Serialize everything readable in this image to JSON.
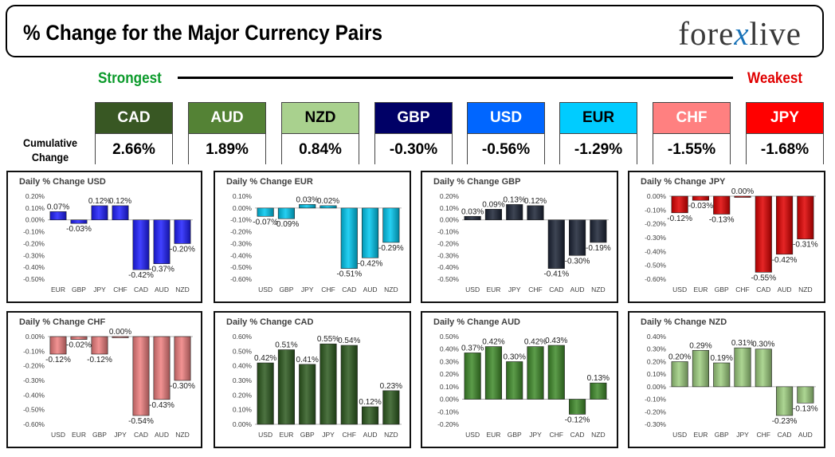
{
  "header": {
    "title": "% Change for the Major Currency Pairs",
    "logo_text_1": "fore",
    "logo_text_x": "x",
    "logo_text_2": "live"
  },
  "strength": {
    "strong_label": "Strongest",
    "weak_label": "Weakest",
    "cumulative_label": "Cumulative Change"
  },
  "currencies": [
    {
      "code": "CAD",
      "value": "2.66%",
      "color": "#385723",
      "text_color": "#ffffff"
    },
    {
      "code": "AUD",
      "value": "1.89%",
      "color": "#548235",
      "text_color": "#ffffff"
    },
    {
      "code": "NZD",
      "value": "0.84%",
      "color": "#a9d18e",
      "text_color": "#000000"
    },
    {
      "code": "GBP",
      "value": "-0.30%",
      "color": "#000066",
      "text_color": "#ffffff"
    },
    {
      "code": "USD",
      "value": "-0.56%",
      "color": "#0066ff",
      "text_color": "#ffffff"
    },
    {
      "code": "EUR",
      "value": "-1.29%",
      "color": "#00ccff",
      "text_color": "#000000"
    },
    {
      "code": "CHF",
      "value": "-1.55%",
      "color": "#ff8080",
      "text_color": "#ffffff"
    },
    {
      "code": "JPY",
      "value": "-1.68%",
      "color": "#ff0000",
      "text_color": "#ffffff"
    }
  ],
  "chart_data": [
    {
      "type": "bar",
      "title": "Daily % Change USD",
      "color": "#1f1fff",
      "categories": [
        "EUR",
        "GBP",
        "JPY",
        "CHF",
        "CAD",
        "AUD",
        "NZD"
      ],
      "values": [
        0.07,
        -0.03,
        0.12,
        0.12,
        -0.42,
        -0.37,
        -0.2
      ],
      "labels": [
        "0.07%",
        "-0.03%",
        "0.12%",
        "0.12%",
        "-0.42%",
        "-0.37%",
        "-0.20%"
      ],
      "ticks": [
        "0.20%",
        "0.10%",
        "0.00%",
        "-0.10%",
        "-0.20%",
        "-0.30%",
        "-0.40%",
        "-0.50%"
      ],
      "ylim": [
        -0.5,
        0.2
      ]
    },
    {
      "type": "bar",
      "title": "Daily % Change EUR",
      "color": "#00c8f0",
      "categories": [
        "USD",
        "GBP",
        "JPY",
        "CHF",
        "CAD",
        "AUD",
        "NZD"
      ],
      "values": [
        -0.07,
        -0.09,
        0.03,
        0.02,
        -0.51,
        -0.42,
        -0.29
      ],
      "labels": [
        "-0.07%",
        "-0.09%",
        "0.03%",
        "0.02%",
        "-0.51%",
        "-0.42%",
        "-0.29%"
      ],
      "ticks": [
        "0.10%",
        "0.00%",
        "-0.10%",
        "-0.20%",
        "-0.30%",
        "-0.40%",
        "-0.50%",
        "-0.60%"
      ],
      "ylim": [
        -0.6,
        0.1
      ]
    },
    {
      "type": "bar",
      "title": "Daily % Change GBP",
      "color": "#1c2436",
      "categories": [
        "USD",
        "EUR",
        "JPY",
        "CHF",
        "CAD",
        "AUD",
        "NZD"
      ],
      "values": [
        0.03,
        0.09,
        0.13,
        0.12,
        -0.41,
        -0.3,
        -0.19
      ],
      "labels": [
        "0.03%",
        "0.09%",
        "0.13%",
        "0.12%",
        "-0.41%",
        "-0.30%",
        "-0.19%"
      ],
      "ticks": [
        "0.20%",
        "0.10%",
        "0.00%",
        "-0.10%",
        "-0.20%",
        "-0.30%",
        "-0.40%",
        "-0.50%"
      ],
      "ylim": [
        -0.5,
        0.2
      ]
    },
    {
      "type": "bar",
      "title": "Daily % Change JPY",
      "color": "#e00000",
      "categories": [
        "USD",
        "EUR",
        "GBP",
        "CHF",
        "CAD",
        "AUD",
        "NZD"
      ],
      "values": [
        -0.12,
        -0.03,
        -0.13,
        0.0,
        -0.55,
        -0.42,
        -0.31
      ],
      "labels": [
        "-0.12%",
        "-0.03%",
        "-0.13%",
        "0.00%",
        "-0.55%",
        "-0.42%",
        "-0.31%"
      ],
      "ticks": [
        "0.00%",
        "-0.10%",
        "-0.20%",
        "-0.30%",
        "-0.40%",
        "-0.50%",
        "-0.60%"
      ],
      "ylim": [
        -0.6,
        0.0
      ]
    },
    {
      "type": "bar",
      "title": "Daily % Change CHF",
      "color": "#f08080",
      "categories": [
        "USD",
        "EUR",
        "GBP",
        "JPY",
        "CAD",
        "AUD",
        "NZD"
      ],
      "values": [
        -0.12,
        -0.02,
        -0.12,
        0.0,
        -0.54,
        -0.43,
        -0.3
      ],
      "labels": [
        "-0.12%",
        "-0.02%",
        "-0.12%",
        "0.00%",
        "-0.54%",
        "-0.43%",
        "-0.30%"
      ],
      "ticks": [
        "0.00%",
        "-0.10%",
        "-0.20%",
        "-0.30%",
        "-0.40%",
        "-0.50%",
        "-0.60%"
      ],
      "ylim": [
        -0.6,
        0.0
      ]
    },
    {
      "type": "bar",
      "title": "Daily % Change CAD",
      "color": "#2d5a1f",
      "categories": [
        "USD",
        "EUR",
        "GBP",
        "JPY",
        "CHF",
        "AUD",
        "NZD"
      ],
      "values": [
        0.42,
        0.51,
        0.41,
        0.55,
        0.54,
        0.12,
        0.23
      ],
      "labels": [
        "0.42%",
        "0.51%",
        "0.41%",
        "0.55%",
        "0.54%",
        "0.12%",
        "0.23%"
      ],
      "ticks": [
        "0.60%",
        "0.50%",
        "0.40%",
        "0.30%",
        "0.20%",
        "0.10%",
        "0.00%"
      ],
      "ylim": [
        0.0,
        0.6
      ]
    },
    {
      "type": "bar",
      "title": "Daily % Change AUD",
      "color": "#3f8a2a",
      "categories": [
        "USD",
        "EUR",
        "GBP",
        "JPY",
        "CHF",
        "CAD",
        "NZD"
      ],
      "values": [
        0.37,
        0.42,
        0.3,
        0.42,
        0.43,
        -0.12,
        0.13
      ],
      "labels": [
        "0.37%",
        "0.42%",
        "0.30%",
        "0.42%",
        "0.43%",
        "-0.12%",
        "0.13%"
      ],
      "ticks": [
        "0.50%",
        "0.40%",
        "0.30%",
        "0.20%",
        "0.10%",
        "0.00%",
        "-0.10%",
        "-0.20%"
      ],
      "ylim": [
        -0.2,
        0.5
      ]
    },
    {
      "type": "bar",
      "title": "Daily % Change NZD",
      "color": "#9fcf80",
      "categories": [
        "USD",
        "EUR",
        "GBP",
        "JPY",
        "CHF",
        "CAD",
        "AUD"
      ],
      "values": [
        0.2,
        0.29,
        0.19,
        0.31,
        0.3,
        -0.23,
        -0.13
      ],
      "labels": [
        "0.20%",
        "0.29%",
        "0.19%",
        "0.31%",
        "0.30%",
        "-0.23%",
        "-0.13%"
      ],
      "ticks": [
        "0.40%",
        "0.30%",
        "0.20%",
        "0.10%",
        "0.00%",
        "-0.10%",
        "-0.20%",
        "-0.30%"
      ],
      "ylim": [
        -0.3,
        0.4
      ]
    }
  ]
}
